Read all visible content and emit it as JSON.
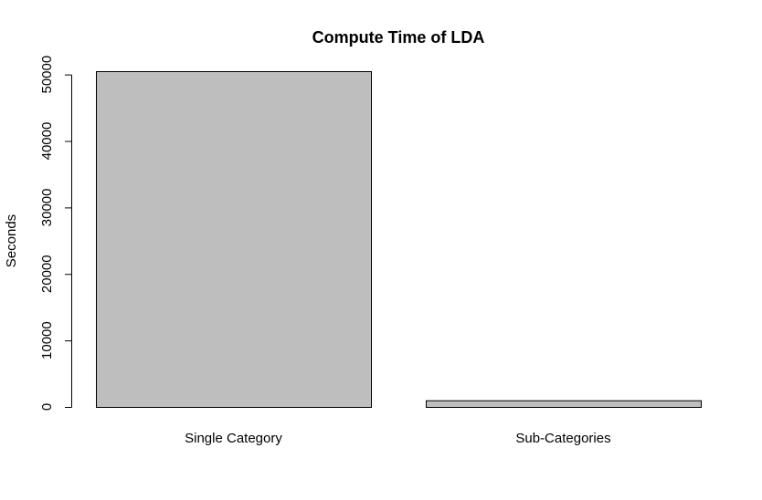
{
  "chart_data": {
    "type": "bar",
    "title": "Compute Time of LDA",
    "xlabel": "",
    "ylabel": "Seconds",
    "categories": [
      "Single Category",
      "Sub-Categories"
    ],
    "values": [
      50500,
      1000
    ],
    "ylim": [
      0,
      50500
    ],
    "yticks": [
      0,
      10000,
      20000,
      30000,
      40000,
      50000
    ],
    "ytick_labels": [
      "0",
      "10000",
      "20000",
      "30000",
      "40000",
      "50000"
    ],
    "grid": false,
    "legend": "none",
    "colors": {
      "bar_fill": "#bebebe",
      "bar_stroke": "#000000",
      "text": "#000000"
    }
  }
}
